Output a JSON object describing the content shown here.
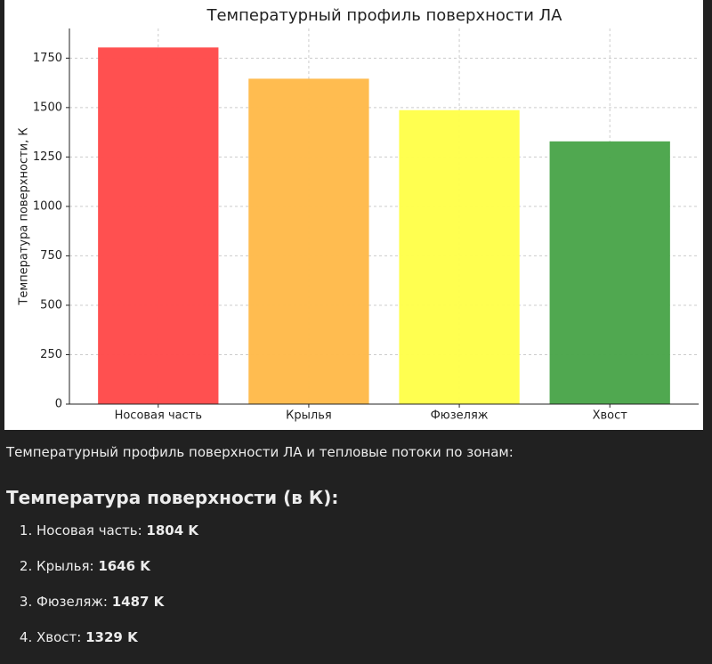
{
  "chart_data": {
    "type": "bar",
    "title": "Температурный профиль поверхности ЛА",
    "y_label": "Температура поверхности, К",
    "categories": [
      "Носовая часть",
      "Крылья",
      "Фюзеляж",
      "Хвост"
    ],
    "values": [
      1804,
      1646,
      1487,
      1329
    ],
    "colors": [
      "#ff4c4c",
      "#ffbb4c",
      "#ffff4c",
      "#4ca64c"
    ],
    "ylim": [
      0,
      1900
    ],
    "yticks": [
      0,
      250,
      500,
      750,
      1000,
      1250,
      1500,
      1750
    ],
    "grid": true
  },
  "message": {
    "intro": "Температурный профиль поверхности ЛА и тепловые потоки по зонам:",
    "heading": "Температура поверхности (в К):",
    "items": [
      {
        "label": "Носовая часть:",
        "value": "1804 K"
      },
      {
        "label": "Крылья:",
        "value": "1646 K"
      },
      {
        "label": "Фюзеляж:",
        "value": "1487 K"
      },
      {
        "label": "Хвост:",
        "value": "1329 K"
      }
    ]
  }
}
